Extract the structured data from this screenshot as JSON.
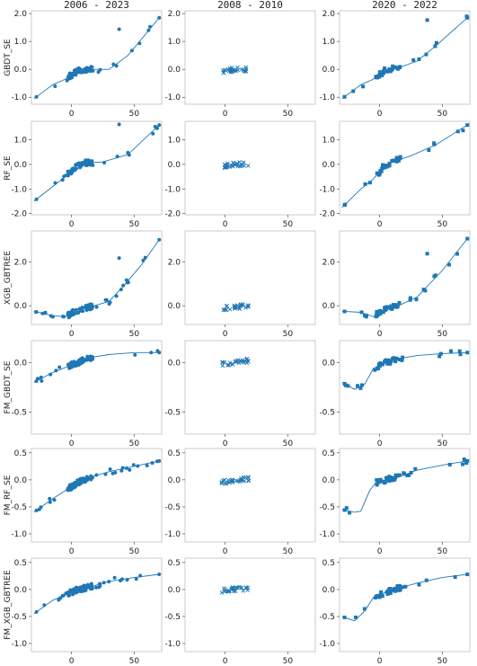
{
  "color": "#1f77b4",
  "columns": [
    "2006 - 2023",
    "2008 - 2010",
    "2020 - 2022"
  ],
  "markers": [
    "circle",
    "x",
    "square"
  ],
  "chart_data": {
    "type": "scatter",
    "xticks": [
      0,
      50
    ],
    "xlim": [
      -32,
      72
    ],
    "rows": [
      {
        "label": "GBDT_SE",
        "ylim": [
          -1.25,
          2.1
        ],
        "yticks": [
          -1.0,
          0.0,
          1.0,
          2.0
        ],
        "line": [
          [
            -30,
            -1.05
          ],
          [
            -15,
            -0.55
          ],
          [
            -5,
            -0.35
          ],
          [
            5,
            -0.05
          ],
          [
            15,
            0.0
          ],
          [
            30,
            0.0
          ],
          [
            45,
            0.5
          ],
          [
            70,
            1.85
          ]
        ],
        "line_2008": null,
        "line_2020": [
          [
            -30,
            -1.05
          ],
          [
            -15,
            -0.55
          ],
          [
            -5,
            -0.35
          ],
          [
            5,
            -0.02
          ],
          [
            15,
            0.05
          ],
          [
            30,
            0.3
          ],
          [
            45,
            0.85
          ],
          [
            70,
            1.85
          ]
        ]
      },
      {
        "label": "RF_SE",
        "ylim": [
          -2.05,
          1.75
        ],
        "yticks": [
          -2.0,
          -1.0,
          0.0,
          1.0
        ],
        "line": [
          [
            -30,
            -1.5
          ],
          [
            -15,
            -0.9
          ],
          [
            -5,
            -0.5
          ],
          [
            3,
            -0.1
          ],
          [
            10,
            0.05
          ],
          [
            25,
            0.1
          ],
          [
            45,
            0.4
          ],
          [
            70,
            1.6
          ]
        ],
        "line_2008": null,
        "line_2020": [
          [
            -30,
            -1.75
          ],
          [
            -15,
            -1.0
          ],
          [
            -5,
            -0.6
          ],
          [
            3,
            -0.1
          ],
          [
            10,
            0.1
          ],
          [
            25,
            0.35
          ],
          [
            45,
            0.8
          ],
          [
            70,
            1.6
          ]
        ]
      },
      {
        "label": "XGB_GBTREE",
        "ylim": [
          -0.85,
          3.4
        ],
        "yticks": [
          0.0,
          2.0
        ],
        "line": [
          [
            -30,
            -0.25
          ],
          [
            -15,
            -0.45
          ],
          [
            -5,
            -0.5
          ],
          [
            5,
            -0.2
          ],
          [
            15,
            -0.05
          ],
          [
            30,
            0.2
          ],
          [
            40,
            0.8
          ],
          [
            55,
            1.8
          ],
          [
            70,
            3.0
          ]
        ],
        "line_2008": null,
        "line_2020": [
          [
            -30,
            -0.25
          ],
          [
            -15,
            -0.3
          ],
          [
            -5,
            -0.5
          ],
          [
            5,
            -0.1
          ],
          [
            15,
            0.0
          ],
          [
            30,
            0.4
          ],
          [
            50,
            1.6
          ],
          [
            70,
            3.05
          ]
        ]
      },
      {
        "label": "FM_GBDT_SE",
        "ylim": [
          -0.72,
          0.22
        ],
        "yticks": [
          -0.5,
          0.0
        ],
        "line": [
          [
            -30,
            -0.2
          ],
          [
            -15,
            -0.1
          ],
          [
            -5,
            -0.05
          ],
          [
            5,
            0.0
          ],
          [
            15,
            0.05
          ],
          [
            30,
            0.08
          ],
          [
            50,
            0.1
          ],
          [
            70,
            0.1
          ]
        ],
        "line_2008": null,
        "line_2020": [
          [
            -30,
            -0.2
          ],
          [
            -20,
            -0.27
          ],
          [
            -12,
            -0.22
          ],
          [
            -5,
            -0.06
          ],
          [
            5,
            0.0
          ],
          [
            15,
            0.04
          ],
          [
            30,
            0.07
          ],
          [
            50,
            0.09
          ],
          [
            70,
            0.1
          ]
        ]
      },
      {
        "label": "FM_RF_SE",
        "ylim": [
          -1.15,
          0.58
        ],
        "yticks": [
          -1.0,
          -0.5,
          0.0,
          0.5
        ],
        "line": [
          [
            -30,
            -0.6
          ],
          [
            -15,
            -0.35
          ],
          [
            -5,
            -0.2
          ],
          [
            5,
            -0.05
          ],
          [
            15,
            0.05
          ],
          [
            30,
            0.15
          ],
          [
            50,
            0.25
          ],
          [
            70,
            0.35
          ]
        ],
        "line_2008": null,
        "line_2020": [
          [
            -30,
            -0.55
          ],
          [
            -20,
            -0.6
          ],
          [
            -15,
            -0.58
          ],
          [
            -8,
            -0.2
          ],
          [
            -3,
            -0.05
          ],
          [
            5,
            0.0
          ],
          [
            15,
            0.05
          ],
          [
            30,
            0.18
          ],
          [
            50,
            0.27
          ],
          [
            70,
            0.35
          ]
        ]
      },
      {
        "label": "FM_XGB_GBTREE",
        "ylim": [
          -1.15,
          0.58
        ],
        "yticks": [
          -1.0,
          -0.5,
          0.0,
          0.5
        ],
        "line": [
          [
            -30,
            -0.45
          ],
          [
            -15,
            -0.2
          ],
          [
            -5,
            -0.1
          ],
          [
            5,
            0.0
          ],
          [
            15,
            0.05
          ],
          [
            30,
            0.15
          ],
          [
            50,
            0.22
          ],
          [
            70,
            0.28
          ]
        ],
        "line_2008": null,
        "line_2020": [
          [
            -30,
            -0.5
          ],
          [
            -20,
            -0.58
          ],
          [
            -12,
            -0.4
          ],
          [
            -5,
            -0.15
          ],
          [
            5,
            -0.05
          ],
          [
            15,
            0.02
          ],
          [
            30,
            0.12
          ],
          [
            50,
            0.22
          ],
          [
            70,
            0.28
          ]
        ]
      }
    ]
  }
}
